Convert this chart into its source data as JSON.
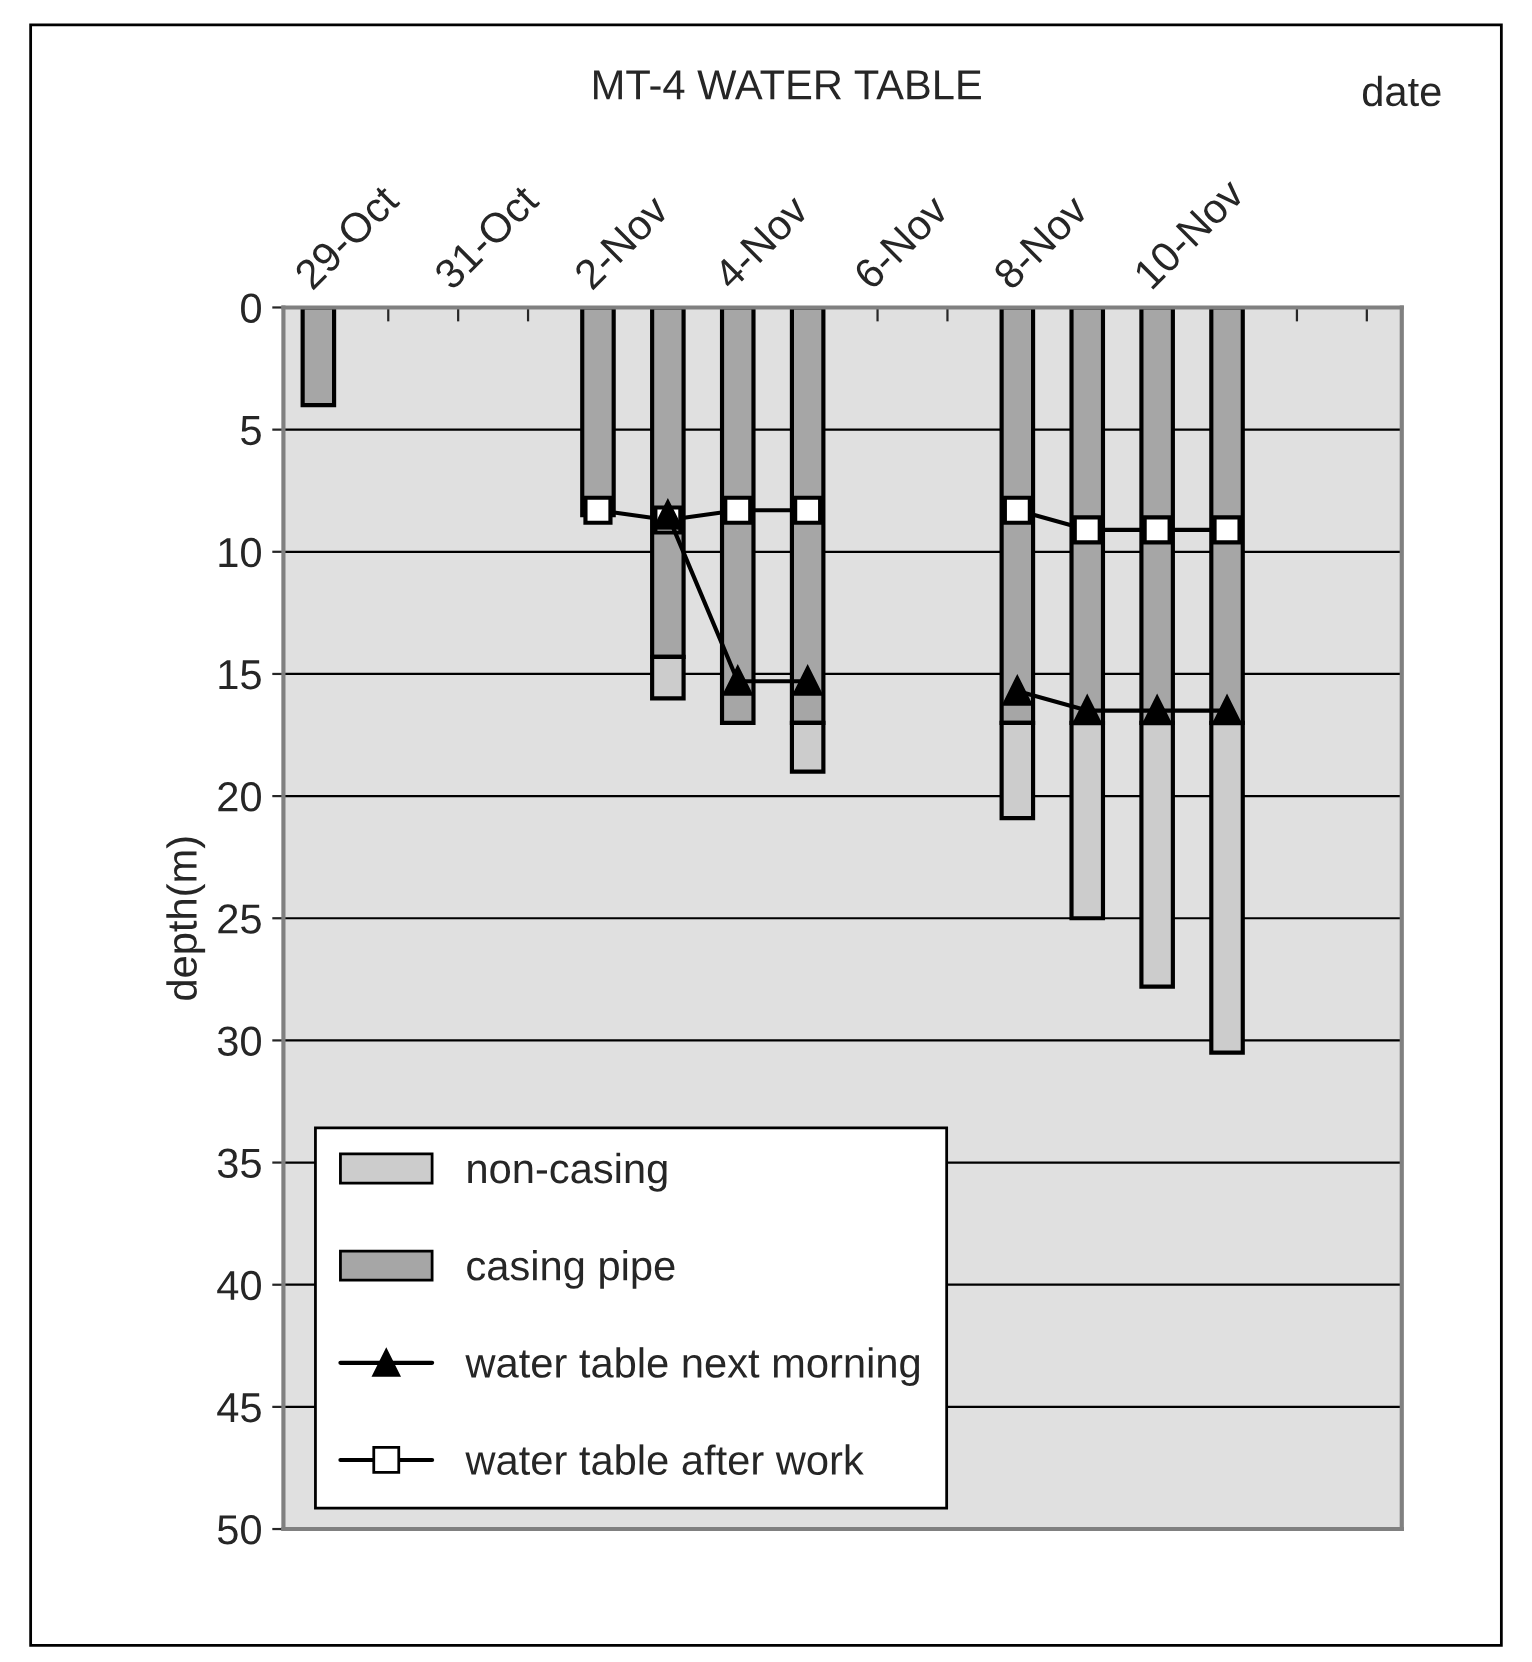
{
  "chart_data": {
    "type": "bar",
    "title": "MT-4 WATER TABLE",
    "xlabel": "date",
    "ylabel": "depth(m)",
    "categories": [
      "29-Oct",
      null,
      "31-Oct",
      null,
      "2-Nov",
      null,
      "4-Nov",
      null,
      "6-Nov",
      null,
      "8-Nov",
      null,
      "10-Nov",
      null,
      null,
      null
    ],
    "stacked": true,
    "series": [
      {
        "name": "casing pipe",
        "color": "#a6a6a6",
        "values": [
          4,
          null,
          null,
          null,
          8.5,
          14.3,
          17,
          17,
          null,
          null,
          17,
          17,
          17,
          17,
          null,
          null
        ]
      },
      {
        "name": "non-casing",
        "color": "#cccccc",
        "values": [
          null,
          null,
          null,
          null,
          null,
          1.7,
          null,
          2,
          null,
          null,
          3.9,
          8,
          10.8,
          13.5,
          null,
          null
        ]
      },
      {
        "name": "water table next morning",
        "type": "line",
        "marker": "triangle",
        "color": "#000000",
        "values": [
          null,
          null,
          null,
          null,
          null,
          8.5,
          15.3,
          15.3,
          null,
          null,
          15.7,
          16.5,
          16.5,
          16.5,
          null,
          null
        ]
      },
      {
        "name": "water table after work",
        "type": "line",
        "marker": "square",
        "color": "#000000",
        "values": [
          null,
          null,
          null,
          null,
          8.3,
          8.7,
          8.3,
          8.3,
          null,
          null,
          8.3,
          9.1,
          9.1,
          9.1,
          null,
          null
        ]
      }
    ],
    "ylim": [
      50,
      0
    ],
    "yticks": [
      0,
      5,
      10,
      15,
      20,
      25,
      30,
      35,
      40,
      45,
      50
    ],
    "grid": "y",
    "legend": "bottom left"
  }
}
